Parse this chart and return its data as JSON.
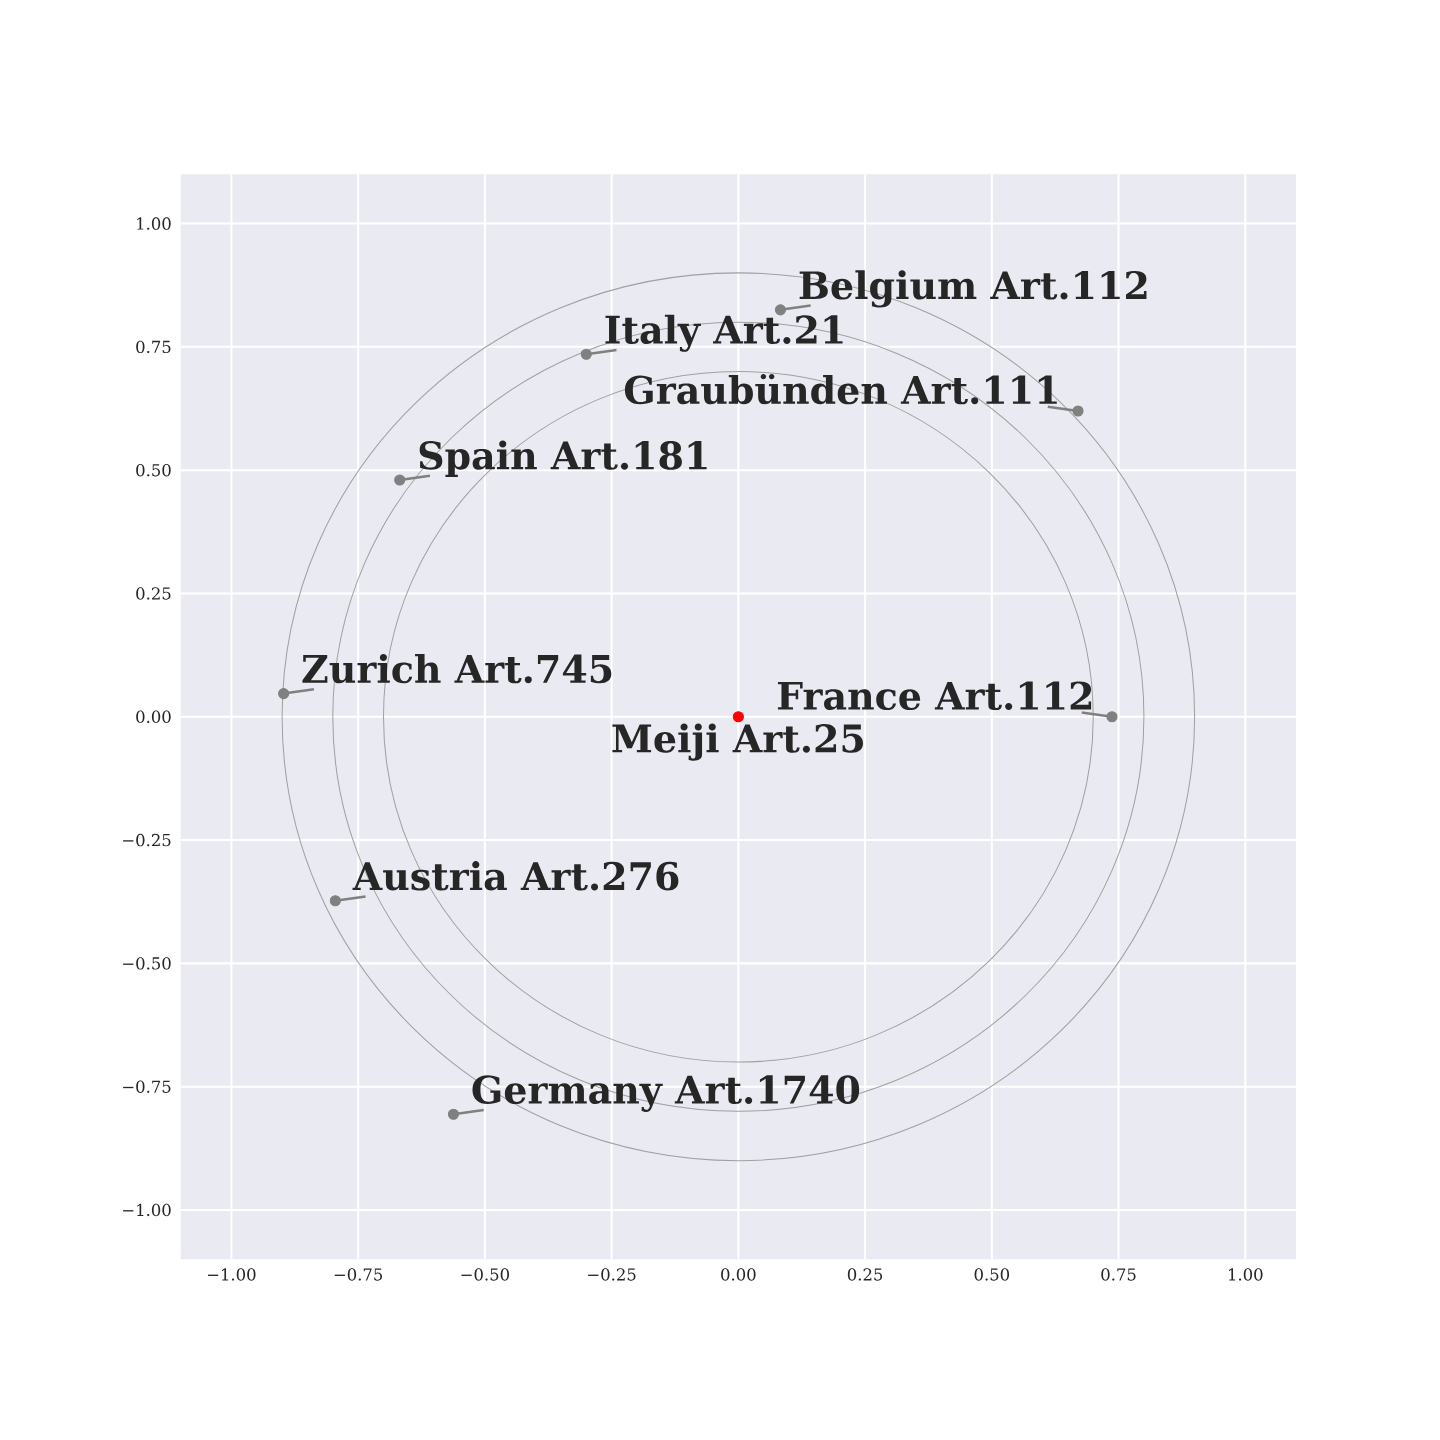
{
  "chart_data": {
    "type": "scatter",
    "x": [
      0,
      0.737,
      0.67,
      0.083,
      -0.3,
      -0.668,
      -0.897,
      -0.795,
      -0.562
    ],
    "values": [
      0,
      0.0,
      0.62,
      0.825,
      0.735,
      0.48,
      0.047,
      -0.373,
      -0.806
    ],
    "colors": [
      "#ff0000",
      "#808080",
      "#808080",
      "#808080",
      "#808080",
      "#808080",
      "#808080",
      "#808080",
      "#808080"
    ],
    "marker": "circle",
    "annotations": [
      {
        "text": "Meiji Art.25",
        "x": 0,
        "y": 0
      },
      {
        "text": "France Art.112",
        "x": 0.737,
        "y": 0.0
      },
      {
        "text": "Graubünden Art.111",
        "x": 0.67,
        "y": 0.62
      },
      {
        "text": "Belgium Art.112",
        "x": 0.083,
        "y": 0.825
      },
      {
        "text": "Italy Art.21",
        "x": -0.3,
        "y": 0.735
      },
      {
        "text": "Spain Art.181",
        "x": -0.668,
        "y": 0.48
      },
      {
        "text": "Zurich Art.745",
        "x": -0.897,
        "y": 0.047
      },
      {
        "text": "Austria Art.276",
        "x": -0.795,
        "y": -0.373
      },
      {
        "text": "Germany Art.1740",
        "x": -0.562,
        "y": -0.806
      }
    ],
    "xlim": [
      -1.1,
      1.1
    ],
    "ylim": [
      -1.1,
      1.1
    ],
    "xticks": [
      {
        "value": -1.0,
        "label": "−1.00"
      },
      {
        "value": -0.75,
        "label": "−0.75"
      },
      {
        "value": -0.5,
        "label": "−0.50"
      },
      {
        "value": -0.25,
        "label": "−0.25"
      },
      {
        "value": 0.0,
        "label": "0.00"
      },
      {
        "value": 0.25,
        "label": "0.25"
      },
      {
        "value": 0.5,
        "label": "0.50"
      },
      {
        "value": 0.75,
        "label": "0.75"
      },
      {
        "value": 1.0,
        "label": "1.00"
      }
    ],
    "yticks": [
      {
        "value": -1.0,
        "label": "−1.00"
      },
      {
        "value": -0.75,
        "label": "−0.75"
      },
      {
        "value": -0.5,
        "label": "−0.50"
      },
      {
        "value": -0.25,
        "label": "−0.25"
      },
      {
        "value": 0.0,
        "label": "0.00"
      },
      {
        "value": 0.25,
        "label": "0.25"
      },
      {
        "value": 0.5,
        "label": "0.50"
      },
      {
        "value": 0.75,
        "label": "0.75"
      },
      {
        "value": 1.0,
        "label": "1.00"
      }
    ],
    "grid": true
  }
}
